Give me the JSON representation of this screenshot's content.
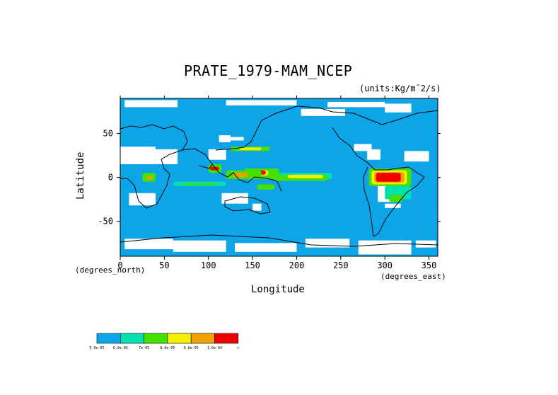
{
  "title": "PRATE_1979-MAM_NCEP",
  "units": "(units:Kg/m^2/s)",
  "units_display": "(units:Kg/m¯2/s)",
  "map": {
    "projection": "equirectangular",
    "lon_range": [
      0,
      360
    ],
    "lat_range": [
      -90,
      90
    ],
    "ocean_color": "#0ea5e8",
    "missing_color": "#ffffff",
    "coastline_color": "#000000"
  },
  "axes": {
    "xlabel": "Longitude",
    "ylabel": "Latitude",
    "x_note": "(degrees_east)",
    "y_note": "(degrees_north)",
    "x_ticks": [
      "0",
      "50",
      "100",
      "150",
      "200",
      "250",
      "300",
      "350"
    ],
    "x_tick_values": [
      0,
      50,
      100,
      150,
      200,
      250,
      300,
      350
    ],
    "y_ticks": [
      "50",
      "0",
      "-50"
    ],
    "y_tick_values": [
      50,
      0,
      -50
    ]
  },
  "colorbar": {
    "colors": [
      "#0ea5e8",
      "#00e0b0",
      "#44e000",
      "#f0f000",
      "#f0a000",
      "#f00000"
    ],
    "labels": [
      "5.0e-05",
      "6.0e-05",
      "7e-05",
      "8.0e-05",
      "9.0e-05",
      "1.0e-04",
      "∞"
    ]
  }
}
